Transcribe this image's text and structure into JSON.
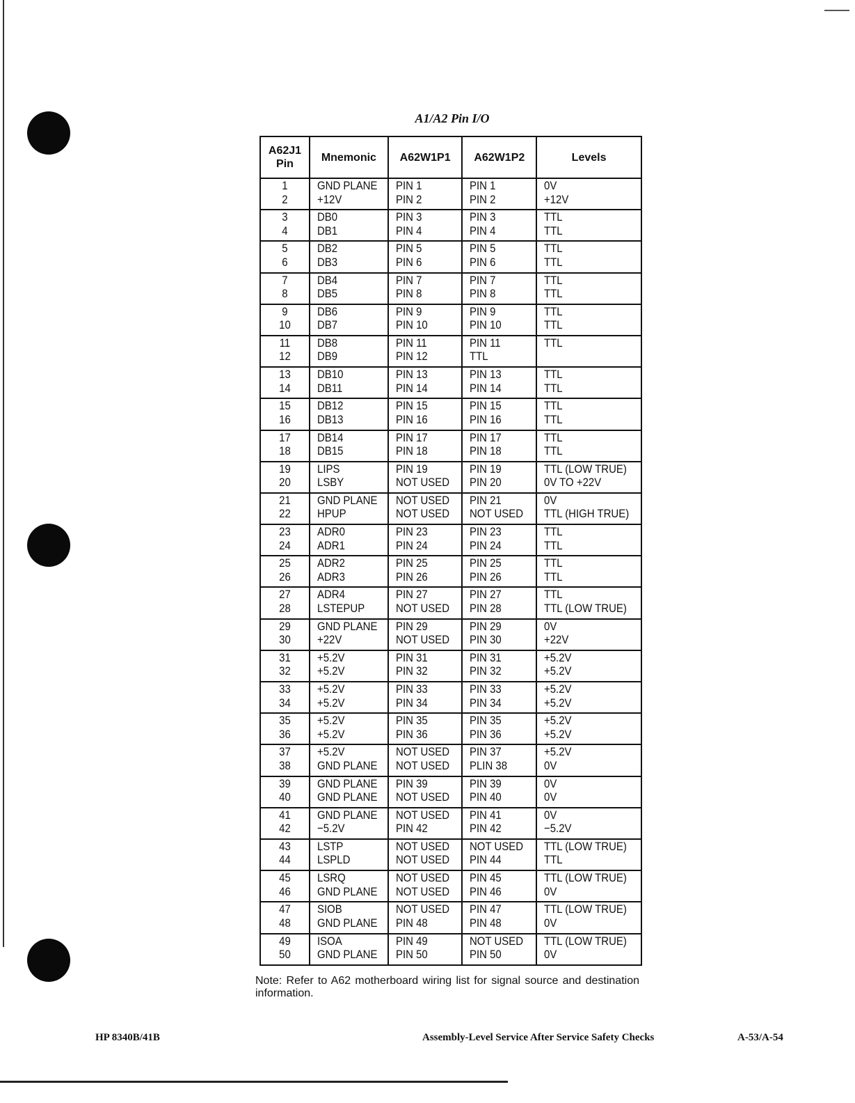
{
  "title": "A1/A2 Pin I/O",
  "table": {
    "headers": [
      "A62J1 Pin",
      "Mnemonic",
      "A62W1P1",
      "A62W1P2",
      "Levels"
    ],
    "rows": [
      {
        "pin": [
          "1",
          "2"
        ],
        "mnemonic": [
          "GND PLANE",
          "+12V"
        ],
        "p1": [
          "PIN 1",
          "PIN 2"
        ],
        "p2": [
          "PIN 1",
          "PIN 2"
        ],
        "levels": [
          "0V",
          "+12V"
        ]
      },
      {
        "pin": [
          "3",
          "4"
        ],
        "mnemonic": [
          "DB0",
          "DB1"
        ],
        "p1": [
          "PIN 3",
          "PIN 4"
        ],
        "p2": [
          "PIN 3",
          "PIN 4"
        ],
        "levels": [
          "TTL",
          "TTL"
        ]
      },
      {
        "pin": [
          "5",
          "6"
        ],
        "mnemonic": [
          "DB2",
          "DB3"
        ],
        "p1": [
          "PIN 5",
          "PIN 6"
        ],
        "p2": [
          "PIN 5",
          "PIN 6"
        ],
        "levels": [
          "TTL",
          "TTL"
        ]
      },
      {
        "pin": [
          "7",
          "8"
        ],
        "mnemonic": [
          "DB4",
          "DB5"
        ],
        "p1": [
          "PIN 7",
          "PIN 8"
        ],
        "p2": [
          "PIN 7",
          "PIN 8"
        ],
        "levels": [
          "TTL",
          "TTL"
        ]
      },
      {
        "pin": [
          "9",
          "10"
        ],
        "mnemonic": [
          "DB6",
          "DB7"
        ],
        "p1": [
          "PIN 9",
          "PIN 10"
        ],
        "p2": [
          "PIN 9",
          "PIN 10"
        ],
        "levels": [
          "TTL",
          "TTL"
        ]
      },
      {
        "pin": [
          "11",
          "12"
        ],
        "mnemonic": [
          "DB8",
          "DB9"
        ],
        "p1": [
          "PIN 11",
          "PIN 12"
        ],
        "p2": [
          "PIN 11",
          "TTL"
        ],
        "levels": [
          "TTL",
          ""
        ]
      },
      {
        "pin": [
          "13",
          "14"
        ],
        "mnemonic": [
          "DB10",
          "DB11"
        ],
        "p1": [
          "PIN 13",
          "PIN 14"
        ],
        "p2": [
          "PIN 13",
          "PIN 14"
        ],
        "levels": [
          "TTL",
          "TTL"
        ]
      },
      {
        "pin": [
          "15",
          "16"
        ],
        "mnemonic": [
          "DB12",
          "DB13"
        ],
        "p1": [
          "PIN 15",
          "PIN 16"
        ],
        "p2": [
          "PIN 15",
          "PIN 16"
        ],
        "levels": [
          "TTL",
          "TTL"
        ]
      },
      {
        "pin": [
          "17",
          "18"
        ],
        "mnemonic": [
          "DB14",
          "DB15"
        ],
        "p1": [
          "PIN 17",
          "PIN 18"
        ],
        "p2": [
          "PIN 17",
          "PIN 18"
        ],
        "levels": [
          "TTL",
          "TTL"
        ]
      },
      {
        "pin": [
          "19",
          "20"
        ],
        "mnemonic": [
          "LIPS",
          "LSBY"
        ],
        "p1": [
          "PIN 19",
          "NOT USED"
        ],
        "p2": [
          "PIN 19",
          "PIN 20"
        ],
        "levels": [
          "TTL (LOW TRUE)",
          "0V TO +22V"
        ]
      },
      {
        "pin": [
          "21",
          "22"
        ],
        "mnemonic": [
          "GND PLANE",
          "HPUP"
        ],
        "p1": [
          "NOT USED",
          "NOT USED"
        ],
        "p2": [
          "PIN 21",
          "NOT USED"
        ],
        "levels": [
          "0V",
          "TTL (HIGH TRUE)"
        ]
      },
      {
        "pin": [
          "23",
          "24"
        ],
        "mnemonic": [
          "ADR0",
          "ADR1"
        ],
        "p1": [
          "PIN 23",
          "PIN 24"
        ],
        "p2": [
          "PIN 23",
          "PIN 24"
        ],
        "levels": [
          "TTL",
          "TTL"
        ]
      },
      {
        "pin": [
          "25",
          "26"
        ],
        "mnemonic": [
          "ADR2",
          "ADR3"
        ],
        "p1": [
          "PIN 25",
          "PIN 26"
        ],
        "p2": [
          "PIN 25",
          "PIN 26"
        ],
        "levels": [
          "TTL",
          "TTL"
        ]
      },
      {
        "pin": [
          "27",
          "28"
        ],
        "mnemonic": [
          "ADR4",
          "LSTEPUP"
        ],
        "p1": [
          "PIN 27",
          "NOT USED"
        ],
        "p2": [
          "PIN 27",
          "PIN 28"
        ],
        "levels": [
          "TTL",
          "TTL (LOW TRUE)"
        ]
      },
      {
        "pin": [
          "29",
          "30"
        ],
        "mnemonic": [
          "GND PLANE",
          "+22V"
        ],
        "p1": [
          "PIN 29",
          "NOT USED"
        ],
        "p2": [
          "PIN 29",
          "PIN 30"
        ],
        "levels": [
          "0V",
          "+22V"
        ]
      },
      {
        "pin": [
          "31",
          "32"
        ],
        "mnemonic": [
          "+5.2V",
          "+5.2V"
        ],
        "p1": [
          "PIN 31",
          "PIN 32"
        ],
        "p2": [
          "PIN 31",
          "PIN 32"
        ],
        "levels": [
          "+5.2V",
          "+5.2V"
        ]
      },
      {
        "pin": [
          "33",
          "34"
        ],
        "mnemonic": [
          "+5.2V",
          "+5.2V"
        ],
        "p1": [
          "PIN 33",
          "PIN 34"
        ],
        "p2": [
          "PIN 33",
          "PIN 34"
        ],
        "levels": [
          "+5.2V",
          "+5.2V"
        ]
      },
      {
        "pin": [
          "35",
          "36"
        ],
        "mnemonic": [
          "+5.2V",
          "+5.2V"
        ],
        "p1": [
          "PIN 35",
          "PIN 36"
        ],
        "p2": [
          "PIN 35",
          "PIN 36"
        ],
        "levels": [
          "+5.2V",
          "+5.2V"
        ]
      },
      {
        "pin": [
          "37",
          "38"
        ],
        "mnemonic": [
          "+5.2V",
          "GND PLANE"
        ],
        "p1": [
          "NOT USED",
          "NOT USED"
        ],
        "p2": [
          "PIN 37",
          "PLIN 38"
        ],
        "levels": [
          "+5.2V",
          "0V"
        ]
      },
      {
        "pin": [
          "39",
          "40"
        ],
        "mnemonic": [
          "GND PLANE",
          "GND PLANE"
        ],
        "p1": [
          "PIN 39",
          "NOT USED"
        ],
        "p2": [
          "PIN 39",
          "PIN 40"
        ],
        "levels": [
          "0V",
          "0V"
        ]
      },
      {
        "pin": [
          "41",
          "42"
        ],
        "mnemonic": [
          "GND PLANE",
          "−5.2V"
        ],
        "p1": [
          "NOT USED",
          "PIN 42"
        ],
        "p2": [
          "PIN 41",
          "PIN 42"
        ],
        "levels": [
          "0V",
          "−5.2V"
        ]
      },
      {
        "pin": [
          "43",
          "44"
        ],
        "mnemonic": [
          "LSTP",
          "LSPLD"
        ],
        "p1": [
          "NOT USED",
          "NOT USED"
        ],
        "p2": [
          "NOT USED",
          "PIN 44"
        ],
        "levels": [
          "TTL (LOW TRUE)",
          "TTL"
        ]
      },
      {
        "pin": [
          "45",
          "46"
        ],
        "mnemonic": [
          "LSRQ",
          "GND PLANE"
        ],
        "p1": [
          "NOT USED",
          "NOT USED"
        ],
        "p2": [
          "PIN 45",
          "PIN 46"
        ],
        "levels": [
          "TTL (LOW TRUE)",
          "0V"
        ]
      },
      {
        "pin": [
          "47",
          "48"
        ],
        "mnemonic": [
          "SIOB",
          "GND PLANE"
        ],
        "p1": [
          "NOT USED",
          "PIN 48"
        ],
        "p2": [
          "PIN 47",
          "PIN 48"
        ],
        "levels": [
          "TTL (LOW TRUE)",
          "0V"
        ]
      },
      {
        "pin": [
          "49",
          "50"
        ],
        "mnemonic": [
          "ISOA",
          "GND PLANE"
        ],
        "p1": [
          "PIN 49",
          "PIN 50"
        ],
        "p2": [
          "NOT USED",
          "PIN 50"
        ],
        "levels": [
          "TTL (LOW TRUE)",
          "0V"
        ]
      }
    ]
  },
  "note": "Note: Refer to A62 motherboard wiring list for signal source and destination information.",
  "footer": {
    "left": "HP 8340B/41B",
    "center": "Assembly-Level Service After Service Safety Checks",
    "right": "A-53/A-54"
  }
}
